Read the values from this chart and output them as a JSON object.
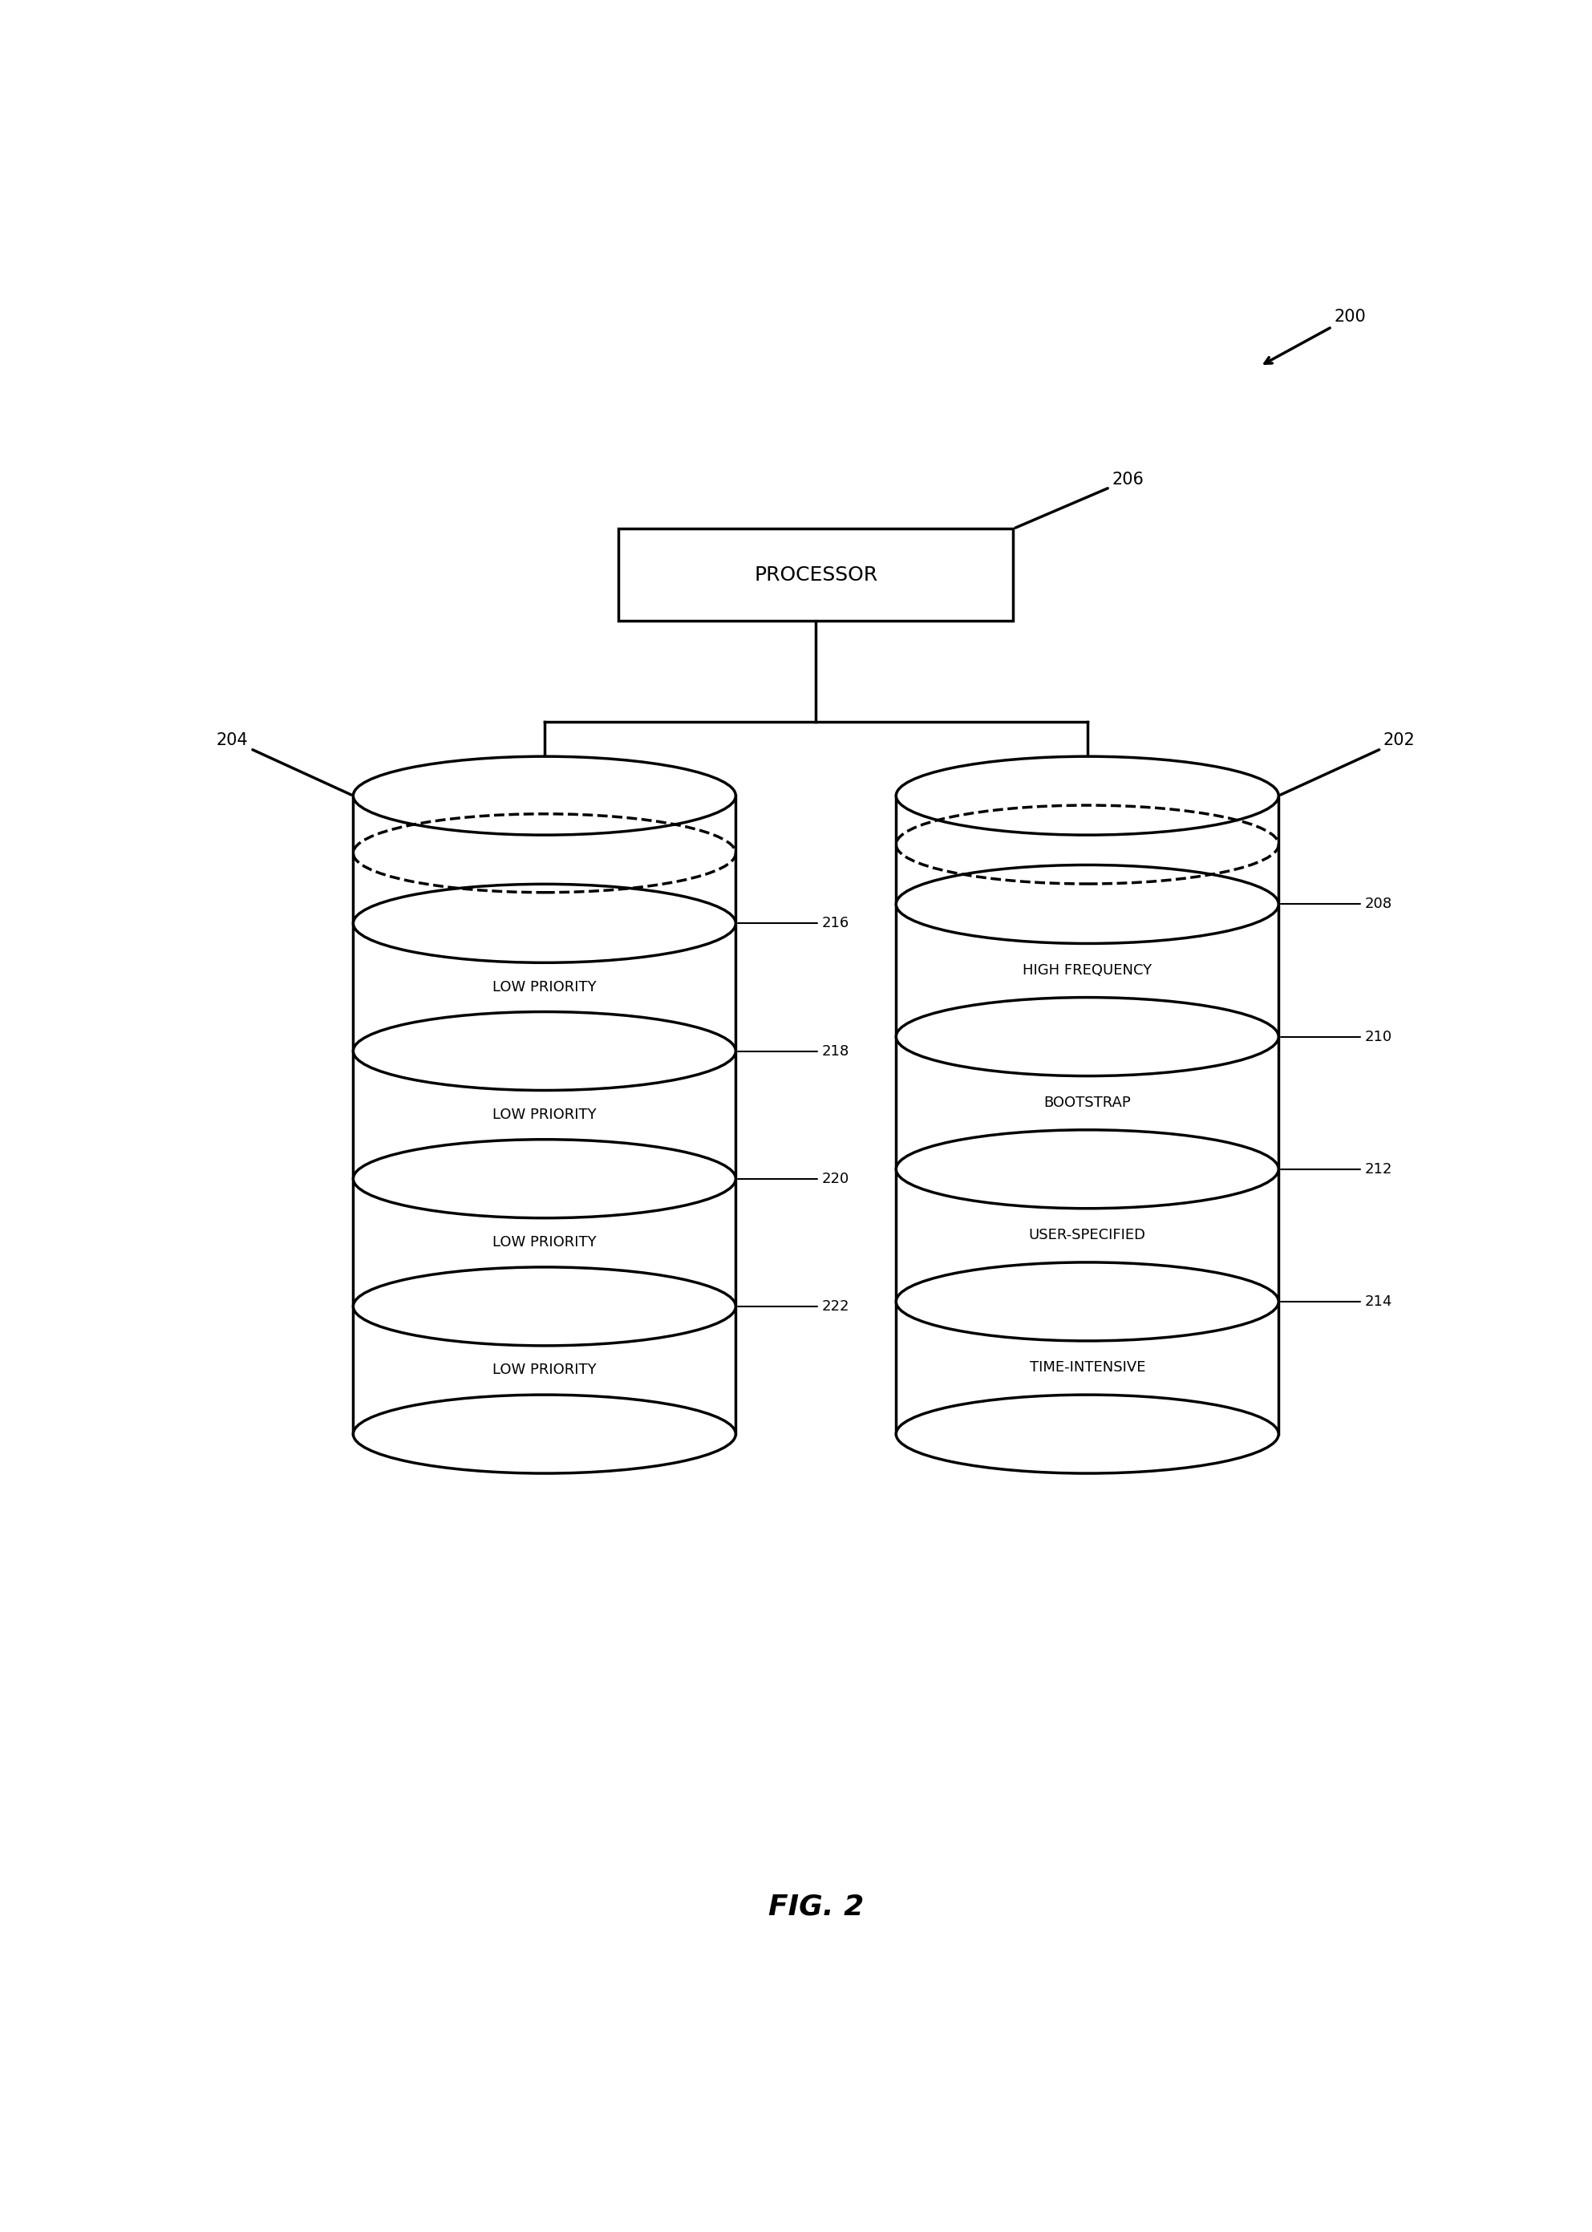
{
  "fig_width": 19.85,
  "fig_height": 27.83,
  "bg_color": "#ffffff",
  "caption": "FIG. 2",
  "processor_label": "PROCESSOR",
  "left_sections": [
    "LOW PRIORITY",
    "LOW PRIORITY",
    "LOW PRIORITY",
    "LOW PRIORITY"
  ],
  "left_section_refs": [
    "216",
    "218",
    "220",
    "222"
  ],
  "right_sections": [
    "HIGH FREQUENCY",
    "BOOTSTRAP",
    "USER-SPECIFIED",
    "TIME-INTENSIVE"
  ],
  "right_section_refs": [
    "208",
    "210",
    "212",
    "214"
  ],
  "line_color": "#000000",
  "line_width": 2.5,
  "font_size_section": 13,
  "font_size_ref": 13,
  "font_size_caption": 26,
  "font_size_processor": 18,
  "font_size_fig_ref": 15
}
